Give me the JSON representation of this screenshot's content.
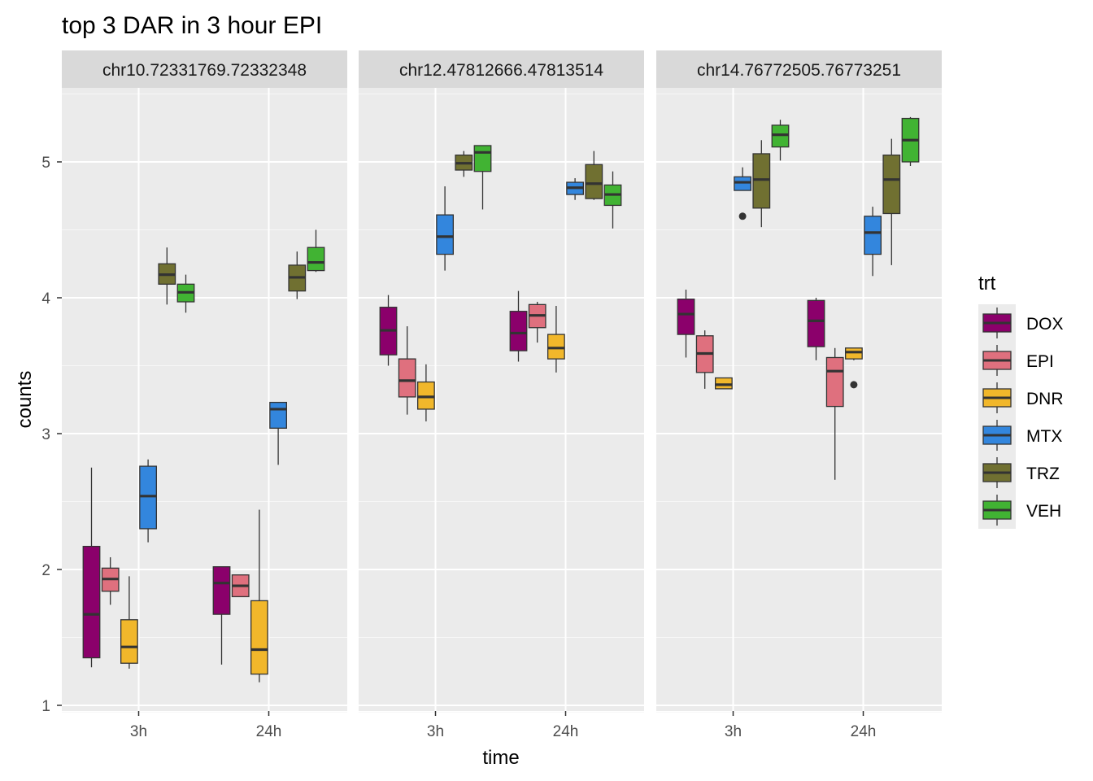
{
  "chart_data": {
    "type": "boxplot",
    "title": "top 3 DAR in 3 hour EPI",
    "xlabel": "time",
    "ylabel": "counts",
    "ylim": [
      0.95,
      5.5
    ],
    "y_ticks": [
      1,
      2,
      3,
      4,
      5
    ],
    "x_categories": [
      "3h",
      "24h"
    ],
    "legend": {
      "title": "trt",
      "position": "right",
      "entries": [
        {
          "label": "DOX",
          "color": "#8B006B"
        },
        {
          "label": "EPI",
          "color": "#DF707E"
        },
        {
          "label": "DNR",
          "color": "#F1B72B"
        },
        {
          "label": "MTX",
          "color": "#3386DD"
        },
        {
          "label": "TRZ",
          "color": "#707031"
        },
        {
          "label": "VEH",
          "color": "#41B333"
        }
      ]
    },
    "panels": [
      {
        "strip": "chr10.72331769.72332348",
        "boxes": [
          {
            "time": "3h",
            "trt": "DOX",
            "ymin": 1.28,
            "q1": 1.35,
            "median": 1.67,
            "q3": 2.17,
            "ymax": 2.75,
            "outliers": []
          },
          {
            "time": "3h",
            "trt": "EPI",
            "ymin": 1.74,
            "q1": 1.84,
            "median": 1.93,
            "q3": 2.01,
            "ymax": 2.09,
            "outliers": []
          },
          {
            "time": "3h",
            "trt": "DNR",
            "ymin": 1.27,
            "q1": 1.31,
            "median": 1.43,
            "q3": 1.63,
            "ymax": 1.95,
            "outliers": []
          },
          {
            "time": "3h",
            "trt": "MTX",
            "ymin": 2.2,
            "q1": 2.3,
            "median": 2.54,
            "q3": 2.76,
            "ymax": 2.81,
            "outliers": []
          },
          {
            "time": "3h",
            "trt": "TRZ",
            "ymin": 3.95,
            "q1": 4.1,
            "median": 4.17,
            "q3": 4.25,
            "ymax": 4.37,
            "outliers": []
          },
          {
            "time": "3h",
            "trt": "VEH",
            "ymin": 3.89,
            "q1": 3.97,
            "median": 4.04,
            "q3": 4.1,
            "ymax": 4.17,
            "outliers": []
          },
          {
            "time": "24h",
            "trt": "DOX",
            "ymin": 1.3,
            "q1": 1.67,
            "median": 1.9,
            "q3": 2.02,
            "ymax": 2.02,
            "outliers": []
          },
          {
            "time": "24h",
            "trt": "EPI",
            "ymin": 1.8,
            "q1": 1.8,
            "median": 1.88,
            "q3": 1.96,
            "ymax": 1.96,
            "outliers": []
          },
          {
            "time": "24h",
            "trt": "DNR",
            "ymin": 1.17,
            "q1": 1.23,
            "median": 1.41,
            "q3": 1.77,
            "ymax": 2.44,
            "outliers": []
          },
          {
            "time": "24h",
            "trt": "MTX",
            "ymin": 2.77,
            "q1": 3.04,
            "median": 3.18,
            "q3": 3.23,
            "ymax": 3.23,
            "outliers": []
          },
          {
            "time": "24h",
            "trt": "TRZ",
            "ymin": 3.99,
            "q1": 4.05,
            "median": 4.15,
            "q3": 4.24,
            "ymax": 4.34,
            "outliers": []
          },
          {
            "time": "24h",
            "trt": "VEH",
            "ymin": 4.19,
            "q1": 4.2,
            "median": 4.26,
            "q3": 4.37,
            "ymax": 4.5,
            "outliers": []
          }
        ]
      },
      {
        "strip": "chr12.47812666.47813514",
        "boxes": [
          {
            "time": "3h",
            "trt": "DOX",
            "ymin": 3.5,
            "q1": 3.58,
            "median": 3.76,
            "q3": 3.93,
            "ymax": 4.02,
            "outliers": []
          },
          {
            "time": "3h",
            "trt": "EPI",
            "ymin": 3.14,
            "q1": 3.27,
            "median": 3.39,
            "q3": 3.55,
            "ymax": 3.79,
            "outliers": []
          },
          {
            "time": "3h",
            "trt": "DNR",
            "ymin": 3.09,
            "q1": 3.18,
            "median": 3.27,
            "q3": 3.38,
            "ymax": 3.51,
            "outliers": []
          },
          {
            "time": "3h",
            "trt": "MTX",
            "ymin": 4.2,
            "q1": 4.32,
            "median": 4.45,
            "q3": 4.61,
            "ymax": 4.82,
            "outliers": []
          },
          {
            "time": "3h",
            "trt": "TRZ",
            "ymin": 4.89,
            "q1": 4.94,
            "median": 4.99,
            "q3": 5.05,
            "ymax": 5.08,
            "outliers": []
          },
          {
            "time": "3h",
            "trt": "VEH",
            "ymin": 4.65,
            "q1": 4.93,
            "median": 5.07,
            "q3": 5.12,
            "ymax": 5.12,
            "outliers": []
          },
          {
            "time": "24h",
            "trt": "DOX",
            "ymin": 3.53,
            "q1": 3.61,
            "median": 3.74,
            "q3": 3.9,
            "ymax": 4.05,
            "outliers": []
          },
          {
            "time": "24h",
            "trt": "EPI",
            "ymin": 3.67,
            "q1": 3.78,
            "median": 3.87,
            "q3": 3.95,
            "ymax": 3.97,
            "outliers": []
          },
          {
            "time": "24h",
            "trt": "DNR",
            "ymin": 3.45,
            "q1": 3.55,
            "median": 3.63,
            "q3": 3.73,
            "ymax": 3.94,
            "outliers": []
          },
          {
            "time": "24h",
            "trt": "MTX",
            "ymin": 4.72,
            "q1": 4.76,
            "median": 4.81,
            "q3": 4.85,
            "ymax": 4.88,
            "outliers": []
          },
          {
            "time": "24h",
            "trt": "TRZ",
            "ymin": 4.72,
            "q1": 4.73,
            "median": 4.84,
            "q3": 4.98,
            "ymax": 5.08,
            "outliers": []
          },
          {
            "time": "24h",
            "trt": "VEH",
            "ymin": 4.51,
            "q1": 4.68,
            "median": 4.76,
            "q3": 4.83,
            "ymax": 4.93,
            "outliers": []
          }
        ]
      },
      {
        "strip": "chr14.76772505.76773251",
        "boxes": [
          {
            "time": "3h",
            "trt": "DOX",
            "ymin": 3.56,
            "q1": 3.73,
            "median": 3.88,
            "q3": 3.99,
            "ymax": 4.06,
            "outliers": []
          },
          {
            "time": "3h",
            "trt": "EPI",
            "ymin": 3.33,
            "q1": 3.45,
            "median": 3.59,
            "q3": 3.72,
            "ymax": 3.76,
            "outliers": []
          },
          {
            "time": "3h",
            "trt": "DNR",
            "ymin": 3.33,
            "q1": 3.33,
            "median": 3.36,
            "q3": 3.41,
            "ymax": 3.41,
            "outliers": []
          },
          {
            "time": "3h",
            "trt": "MTX",
            "ymin": 4.79,
            "q1": 4.79,
            "median": 4.85,
            "q3": 4.89,
            "ymax": 4.96,
            "outliers": [
              4.6
            ]
          },
          {
            "time": "3h",
            "trt": "TRZ",
            "ymin": 4.52,
            "q1": 4.66,
            "median": 4.87,
            "q3": 5.06,
            "ymax": 5.16,
            "outliers": []
          },
          {
            "time": "3h",
            "trt": "VEH",
            "ymin": 5.01,
            "q1": 5.11,
            "median": 5.2,
            "q3": 5.27,
            "ymax": 5.31,
            "outliers": []
          },
          {
            "time": "24h",
            "trt": "DOX",
            "ymin": 3.54,
            "q1": 3.64,
            "median": 3.83,
            "q3": 3.98,
            "ymax": 4.0,
            "outliers": []
          },
          {
            "time": "24h",
            "trt": "EPI",
            "ymin": 2.66,
            "q1": 3.2,
            "median": 3.46,
            "q3": 3.56,
            "ymax": 3.63,
            "outliers": []
          },
          {
            "time": "24h",
            "trt": "DNR",
            "ymin": 3.54,
            "q1": 3.55,
            "median": 3.6,
            "q3": 3.63,
            "ymax": 3.63,
            "outliers": [
              3.36
            ]
          },
          {
            "time": "24h",
            "trt": "MTX",
            "ymin": 4.16,
            "q1": 4.32,
            "median": 4.48,
            "q3": 4.6,
            "ymax": 4.67,
            "outliers": []
          },
          {
            "time": "24h",
            "trt": "TRZ",
            "ymin": 4.24,
            "q1": 4.62,
            "median": 4.87,
            "q3": 5.05,
            "ymax": 5.17,
            "outliers": []
          },
          {
            "time": "24h",
            "trt": "VEH",
            "ymin": 4.97,
            "q1": 5.0,
            "median": 5.16,
            "q3": 5.32,
            "ymax": 5.33,
            "outliers": []
          }
        ]
      }
    ]
  }
}
